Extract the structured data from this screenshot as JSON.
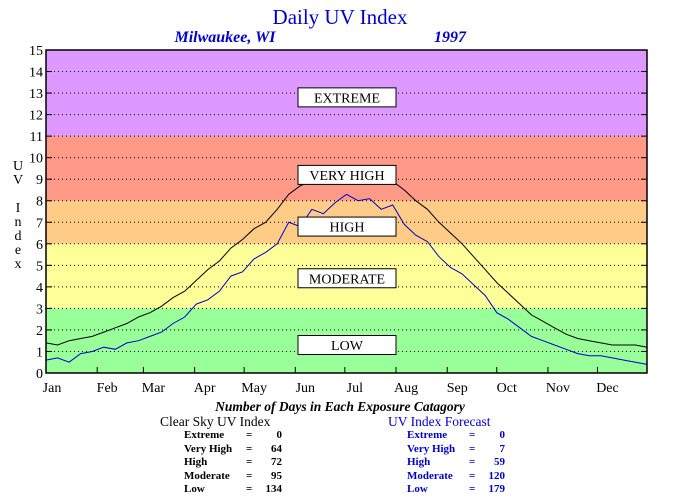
{
  "chart_data": {
    "type": "line",
    "title": "Daily UV Index",
    "subtitle_location": "Milwaukee, WI",
    "subtitle_year": "1997",
    "ylabel": "UV Index",
    "ylim": [
      0,
      15
    ],
    "yticks": [
      "0",
      "1",
      "2",
      "3",
      "4",
      "5",
      "6",
      "7",
      "8",
      "9",
      "10",
      "11",
      "12",
      "13",
      "14",
      "15"
    ],
    "xlim": [
      1,
      365
    ],
    "x_ticks": [
      {
        "label": "Jan",
        "day": 1
      },
      {
        "label": "Feb",
        "day": 32
      },
      {
        "label": "Mar",
        "day": 60
      },
      {
        "label": "Apr",
        "day": 91
      },
      {
        "label": "May",
        "day": 121
      },
      {
        "label": "Jun",
        "day": 152
      },
      {
        "label": "Jul",
        "day": 182
      },
      {
        "label": "Aug",
        "day": 213
      },
      {
        "label": "Sep",
        "day": 244
      },
      {
        "label": "Oct",
        "day": 274
      },
      {
        "label": "Nov",
        "day": 305
      },
      {
        "label": "Dec",
        "day": 335
      }
    ],
    "grid": "dotted",
    "bands": [
      {
        "label": "LOW",
        "from": 0,
        "to": 3,
        "color": "#99ff99"
      },
      {
        "label": "MODERATE",
        "from": 3,
        "to": 6,
        "color": "#ffff99"
      },
      {
        "label": "HIGH",
        "from": 6,
        "to": 8,
        "color": "#ffcc88"
      },
      {
        "label": "VERY HIGH",
        "from": 8,
        "to": 11,
        "color": "#ff9988"
      },
      {
        "label": "EXTREME",
        "from": 11,
        "to": 15,
        "color": "#dd99ff"
      }
    ],
    "band_label_values": {
      "LOW": 1.3,
      "MODERATE": 4.4,
      "HIGH": 6.8,
      "VERY HIGH": 9.2,
      "EXTREME": 12.8
    },
    "series": [
      {
        "key": "clear_sky",
        "color": "#000000",
        "x": [
          1,
          8,
          15,
          22,
          29,
          36,
          43,
          50,
          57,
          64,
          71,
          78,
          85,
          92,
          99,
          106,
          113,
          120,
          127,
          134,
          141,
          148,
          155,
          162,
          169,
          176,
          183,
          190,
          197,
          204,
          211,
          218,
          225,
          232,
          239,
          246,
          253,
          260,
          267,
          274,
          281,
          288,
          295,
          302,
          309,
          316,
          323,
          330,
          337,
          344,
          351,
          358,
          365
        ],
        "values": [
          1.4,
          1.3,
          1.5,
          1.6,
          1.7,
          1.9,
          2.1,
          2.3,
          2.6,
          2.8,
          3.1,
          3.5,
          3.8,
          4.3,
          4.8,
          5.2,
          5.8,
          6.2,
          6.7,
          7.0,
          7.6,
          8.3,
          8.7,
          8.9,
          9.0,
          9.2,
          9.3,
          9.4,
          9.3,
          9.0,
          8.9,
          8.5,
          8.0,
          7.6,
          7.0,
          6.5,
          6.0,
          5.4,
          4.8,
          4.2,
          3.7,
          3.2,
          2.7,
          2.4,
          2.1,
          1.8,
          1.6,
          1.5,
          1.4,
          1.3,
          1.3,
          1.3,
          1.2
        ]
      },
      {
        "key": "forecast",
        "color": "#0000cc",
        "x": [
          1,
          8,
          15,
          22,
          29,
          36,
          43,
          50,
          57,
          64,
          71,
          78,
          85,
          92,
          99,
          106,
          113,
          120,
          127,
          134,
          141,
          148,
          155,
          162,
          169,
          176,
          183,
          190,
          197,
          204,
          211,
          218,
          225,
          232,
          239,
          246,
          253,
          260,
          267,
          274,
          281,
          288,
          295,
          302,
          309,
          316,
          323,
          330,
          337,
          344,
          351,
          358,
          365
        ],
        "values": [
          0.6,
          0.7,
          0.5,
          0.9,
          1.0,
          1.2,
          1.1,
          1.4,
          1.5,
          1.7,
          1.9,
          2.3,
          2.6,
          3.2,
          3.4,
          3.8,
          4.5,
          4.7,
          5.3,
          5.6,
          6.0,
          7.0,
          6.8,
          7.6,
          7.4,
          7.9,
          8.3,
          8.0,
          8.1,
          7.6,
          7.8,
          6.9,
          6.4,
          6.1,
          5.4,
          4.9,
          4.6,
          4.1,
          3.6,
          2.8,
          2.5,
          2.1,
          1.7,
          1.5,
          1.3,
          1.1,
          0.9,
          0.8,
          0.8,
          0.7,
          0.6,
          0.5,
          0.4
        ]
      }
    ],
    "x_caption": "Number of Days in Each Exposure Catagory"
  },
  "summary": {
    "clear_sky": {
      "title": "Clear Sky UV Index",
      "rows": [
        {
          "label": "Extreme",
          "sep": "=",
          "value": "0"
        },
        {
          "label": "Very High",
          "sep": "=",
          "value": "64"
        },
        {
          "label": "High",
          "sep": "=",
          "value": "72"
        },
        {
          "label": "Moderate",
          "sep": "=",
          "value": "95"
        },
        {
          "label": "Low",
          "sep": "=",
          "value": "134"
        }
      ]
    },
    "forecast": {
      "title": "UV Index Forecast",
      "rows": [
        {
          "label": "Extreme",
          "sep": "=",
          "value": "0"
        },
        {
          "label": "Very High",
          "sep": "=",
          "value": "7"
        },
        {
          "label": "High",
          "sep": "=",
          "value": "59"
        },
        {
          "label": "Moderate",
          "sep": "=",
          "value": "120"
        },
        {
          "label": "Low",
          "sep": "=",
          "value": "179"
        }
      ]
    }
  },
  "colors": {
    "title": "#0000cc",
    "forecast_text": "#0000cc",
    "clear_sky_text": "#000000"
  }
}
